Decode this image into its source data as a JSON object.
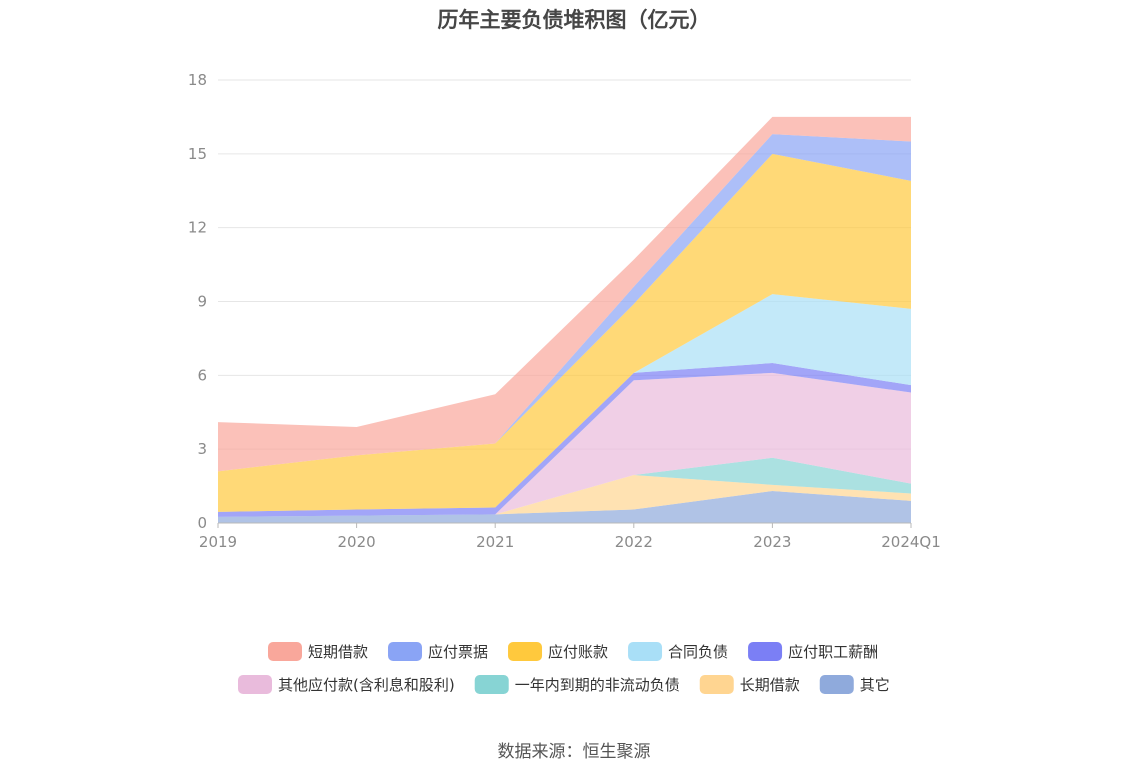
{
  "chart_data": {
    "type": "area",
    "title": "历年主要负债堆积图（亿元）",
    "categories": [
      "2019",
      "2020",
      "2021",
      "2022",
      "2023",
      "2024Q1"
    ],
    "ylim": [
      0,
      18
    ],
    "yticks": [
      0,
      3,
      6,
      9,
      12,
      15,
      18
    ],
    "grid": true,
    "legend_position": "bottom",
    "series": [
      {
        "name": "其它",
        "color": "#8faadc",
        "values": [
          0.25,
          0.3,
          0.35,
          0.55,
          1.3,
          0.9
        ]
      },
      {
        "name": "长期借款",
        "color": "#ffd591",
        "values": [
          0.0,
          0.0,
          0.0,
          1.4,
          0.25,
          0.3
        ]
      },
      {
        "name": "一年内到期的非流动负债",
        "color": "#87d4d4",
        "values": [
          0.0,
          0.0,
          0.0,
          0.0,
          1.1,
          0.4
        ]
      },
      {
        "name": "其他应付款(含利息和股利)",
        "color": "#e9bbdc",
        "values": [
          0.0,
          0.0,
          0.0,
          3.85,
          3.45,
          3.7
        ]
      },
      {
        "name": "应付职工薪酬",
        "color": "#7b7ff5",
        "values": [
          0.2,
          0.25,
          0.28,
          0.3,
          0.4,
          0.3
        ]
      },
      {
        "name": "合同负债",
        "color": "#a9dff7",
        "values": [
          0.0,
          0.0,
          0.0,
          0.0,
          2.8,
          3.1
        ]
      },
      {
        "name": "应付账款",
        "color": "#ffc93d",
        "values": [
          1.65,
          2.2,
          2.6,
          2.8,
          5.7,
          5.2
        ]
      },
      {
        "name": "应付票据",
        "color": "#8aa4f5",
        "values": [
          0.0,
          0.0,
          0.0,
          0.7,
          0.8,
          1.6
        ]
      },
      {
        "name": "短期借款",
        "color": "#f9a79b",
        "values": [
          2.0,
          1.15,
          2.0,
          1.1,
          0.7,
          1.0
        ]
      }
    ],
    "legend_order": [
      "短期借款",
      "应付票据",
      "应付账款",
      "合同负债",
      "应付职工薪酬",
      "其他应付款(含利息和股利)",
      "一年内到期的非流动负债",
      "长期借款",
      "其它"
    ]
  },
  "source": "数据来源：恒生聚源"
}
